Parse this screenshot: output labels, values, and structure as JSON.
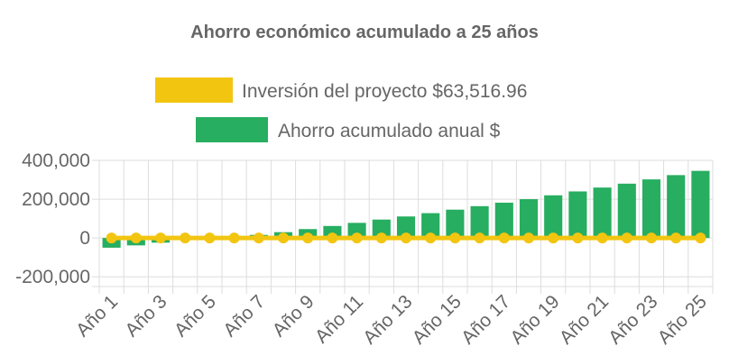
{
  "chart_data": {
    "type": "bar",
    "title": "Ahorro económico acumulado a 25 años",
    "categories": [
      "Año 1",
      "Año 2",
      "Año 3",
      "Año 4",
      "Año 5",
      "Año 6",
      "Año 7",
      "Año 8",
      "Año 9",
      "Año 10",
      "Año 11",
      "Año 12",
      "Año 13",
      "Año 14",
      "Año 15",
      "Año 16",
      "Año 17",
      "Año 18",
      "Año 19",
      "Año 20",
      "Año 21",
      "Año 22",
      "Año 23",
      "Año 24",
      "Año 25"
    ],
    "x_tick_labels_shown": [
      "Año 1",
      "Año 3",
      "Año 5",
      "Año 7",
      "Año 9",
      "Año 11",
      "Año 13",
      "Año 15",
      "Año 17",
      "Año 19",
      "Año 21",
      "Año 23",
      "Año 25"
    ],
    "y_ticks": [
      {
        "value": 400000,
        "label": "400,000"
      },
      {
        "value": 200000,
        "label": "200,000"
      },
      {
        "value": 0,
        "label": "0"
      },
      {
        "value": -200000,
        "label": "-200,000"
      }
    ],
    "ylim": [
      -250000,
      400000
    ],
    "grid": true,
    "legend_position": "top",
    "series": [
      {
        "name": "Inversión del proyecto $63,516.96",
        "type": "line",
        "color": "#f2c511",
        "values": [
          0,
          0,
          0,
          0,
          0,
          0,
          0,
          0,
          0,
          0,
          0,
          0,
          0,
          0,
          0,
          0,
          0,
          0,
          0,
          0,
          0,
          0,
          0,
          0,
          0
        ]
      },
      {
        "name": "Ahorro acumulado anual $",
        "type": "bar",
        "color": "#27ae60",
        "values": [
          -50000,
          -38000,
          -24000,
          -10000,
          -2000,
          4000,
          16000,
          30000,
          46000,
          62000,
          78000,
          95000,
          111000,
          128000,
          146000,
          164000,
          182000,
          200000,
          220000,
          240000,
          260000,
          280000,
          302000,
          324000,
          346000
        ]
      }
    ]
  },
  "colors": {
    "title": "#666666",
    "axis_text": "#666666",
    "grid": "#dddddd"
  }
}
